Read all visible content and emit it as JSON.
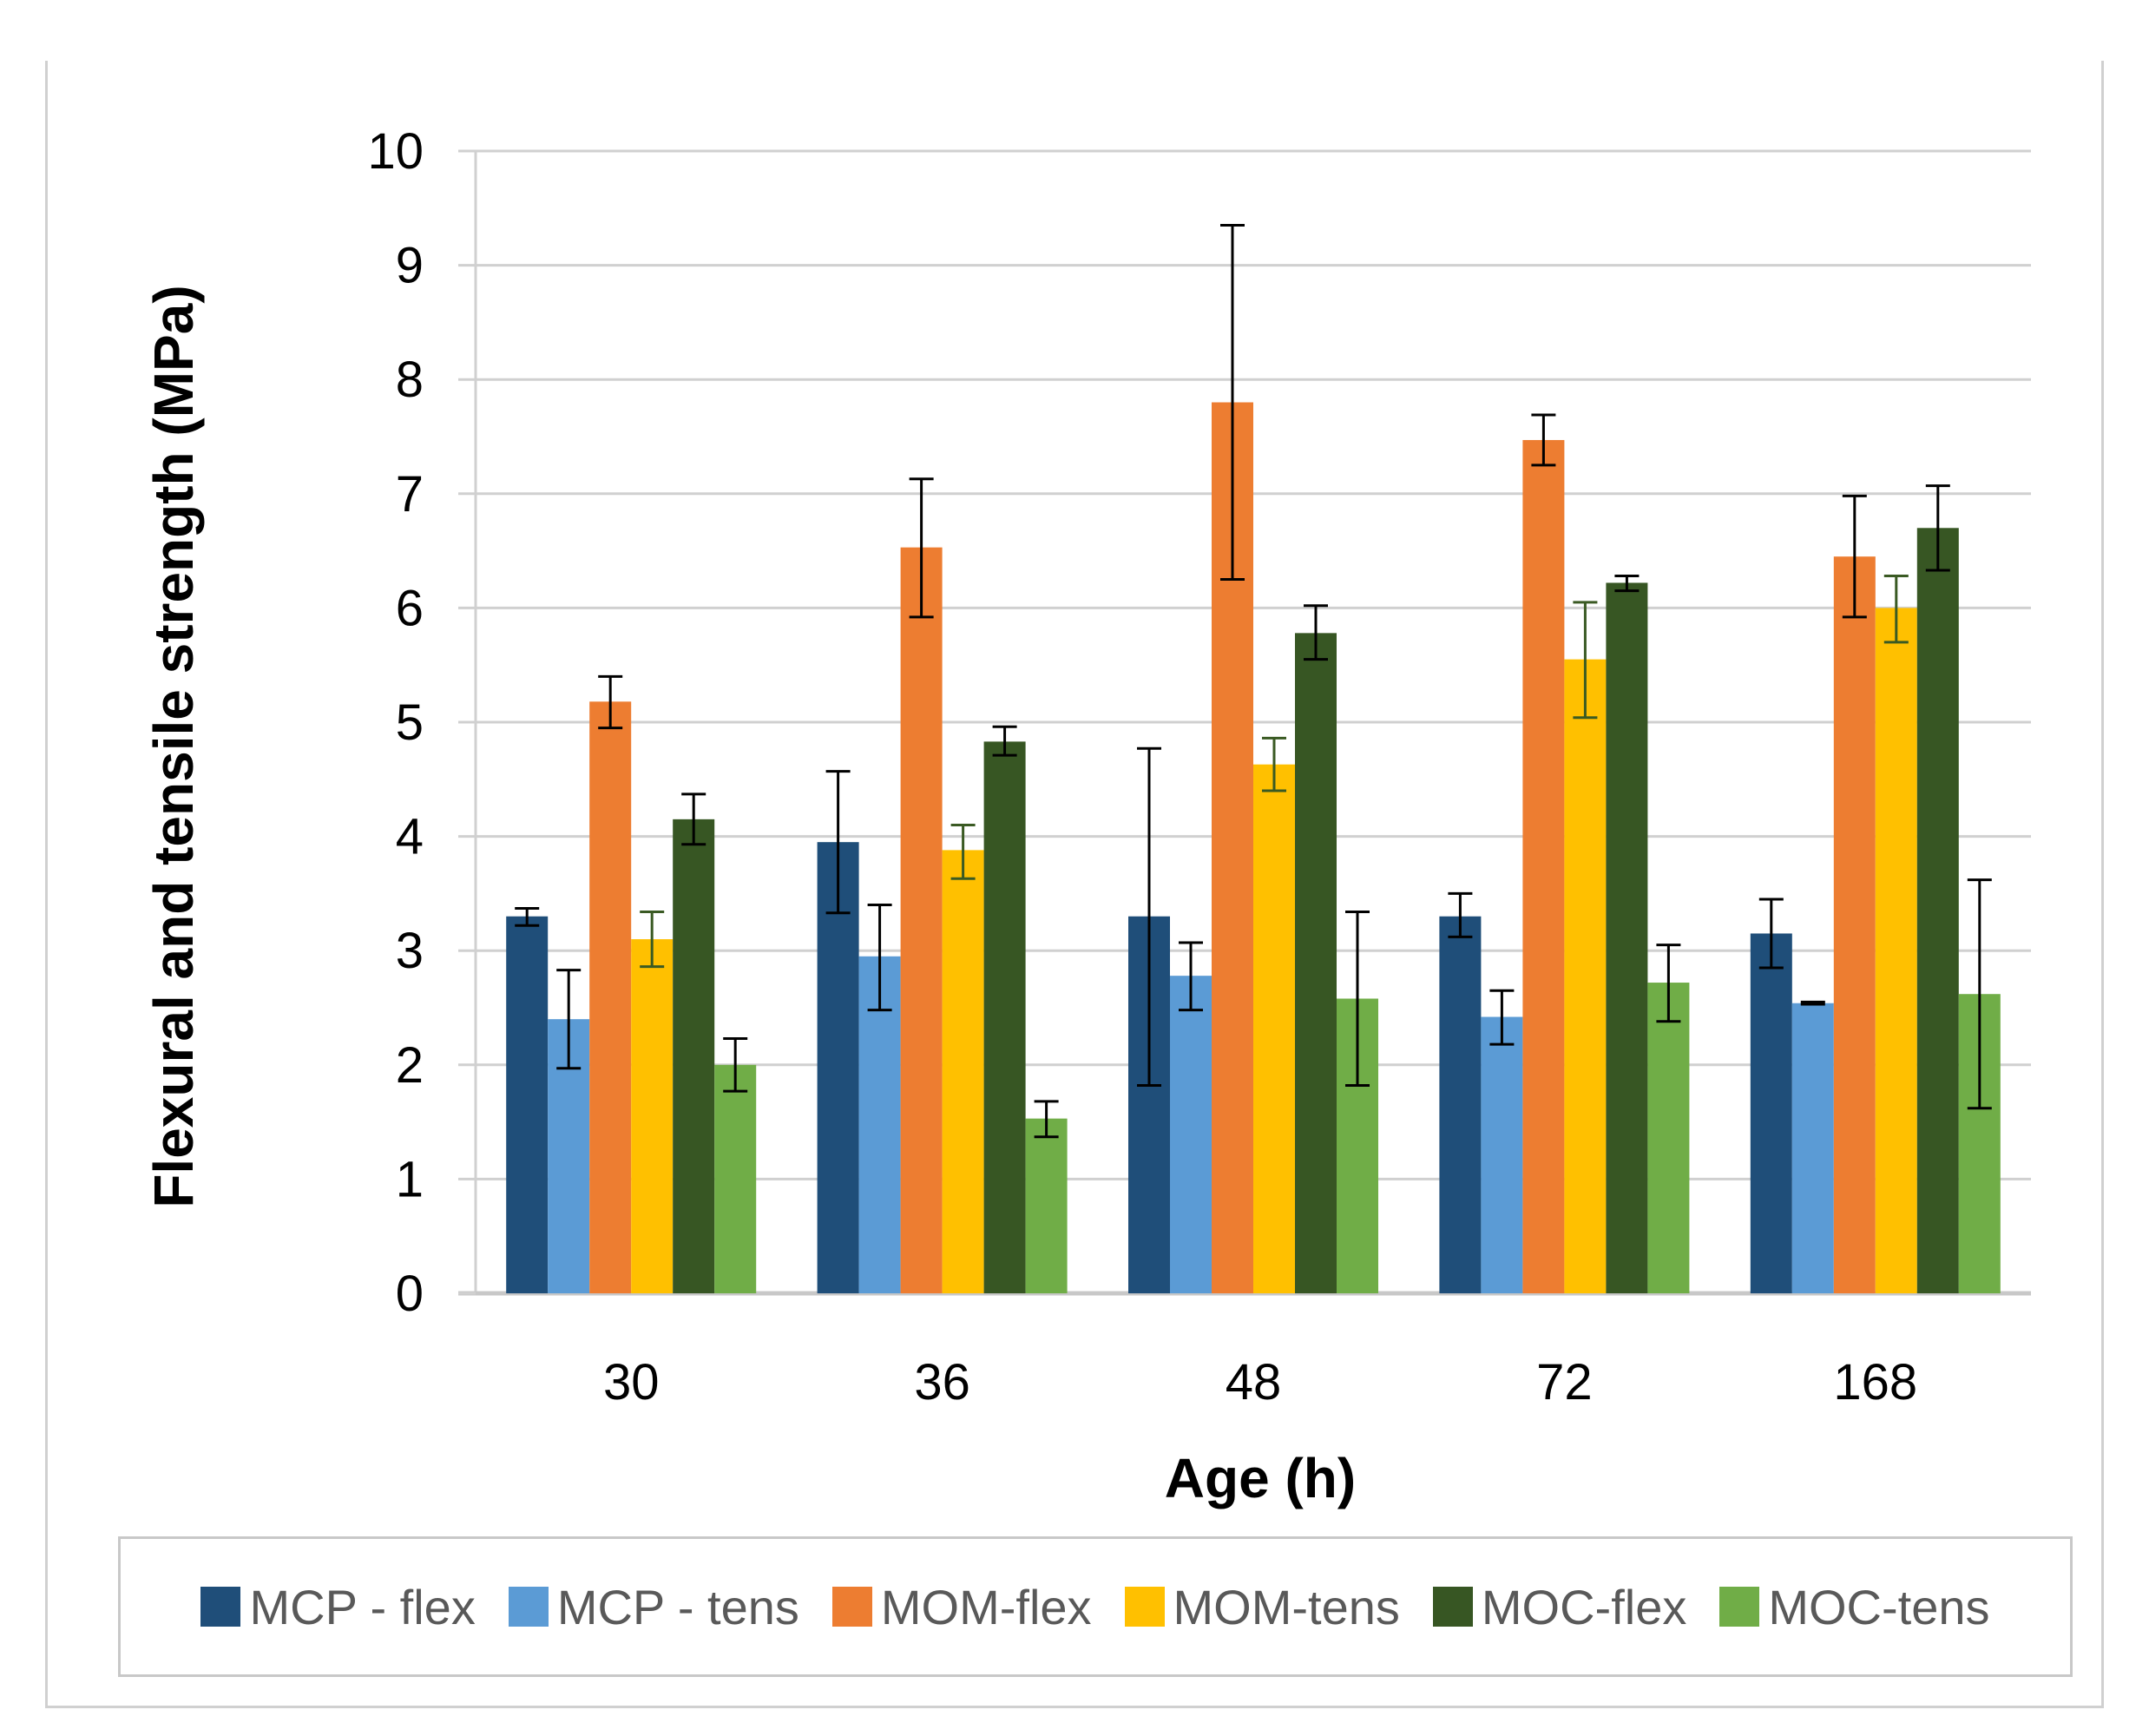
{
  "chart_data": {
    "type": "bar",
    "title": "",
    "xlabel": "Age (h)",
    "ylabel": "Flexural and tensile strength (MPa)",
    "ylim": [
      0,
      10
    ],
    "yticks": [
      "0",
      "1",
      "2",
      "3",
      "4",
      "5",
      "6",
      "7",
      "8",
      "9",
      "10"
    ],
    "categories": [
      "30",
      "36",
      "48",
      "72",
      "168"
    ],
    "grid": true,
    "legend_position": "bottom",
    "series": [
      {
        "name": "MCP - flex",
        "color": "#1f4e79",
        "values": [
          3.3,
          3.95,
          3.3,
          3.3,
          3.15
        ],
        "error_low": [
          3.22,
          3.33,
          1.82,
          3.12,
          2.85
        ],
        "error_high": [
          3.37,
          4.57,
          4.77,
          3.5,
          3.45
        ]
      },
      {
        "name": "MCP - tens",
        "color": "#5b9bd5",
        "values": [
          2.4,
          2.95,
          2.78,
          2.42,
          2.54
        ],
        "error_low": [
          1.97,
          2.48,
          2.48,
          2.18,
          2.53
        ],
        "error_high": [
          2.83,
          3.4,
          3.07,
          2.65,
          2.55
        ]
      },
      {
        "name": "MOM-flex",
        "color": "#ed7d31",
        "values": [
          5.18,
          6.53,
          7.8,
          7.47,
          6.45
        ],
        "error_low": [
          4.95,
          5.92,
          6.25,
          7.25,
          5.92
        ],
        "error_high": [
          5.4,
          7.13,
          9.35,
          7.69,
          6.98
        ]
      },
      {
        "name": "MOM-tens",
        "color": "#ffc000",
        "values": [
          3.1,
          3.88,
          4.63,
          5.55,
          6.0
        ],
        "error_low": [
          2.86,
          3.63,
          4.4,
          5.04,
          5.7
        ],
        "error_high": [
          3.34,
          4.1,
          4.86,
          6.05,
          6.28
        ]
      },
      {
        "name": "MOC-flex",
        "color": "#375623",
        "values": [
          4.15,
          4.83,
          5.78,
          6.22,
          6.7
        ],
        "error_low": [
          3.93,
          4.71,
          5.55,
          6.15,
          6.33
        ],
        "error_high": [
          4.37,
          4.96,
          6.02,
          6.28,
          7.07
        ]
      },
      {
        "name": "MOC-tens",
        "color": "#70ad47",
        "values": [
          2.0,
          1.53,
          2.58,
          2.72,
          2.62
        ],
        "error_low": [
          1.77,
          1.37,
          1.82,
          2.38,
          1.62
        ],
        "error_high": [
          2.23,
          1.68,
          3.34,
          3.05,
          3.62
        ]
      }
    ]
  }
}
